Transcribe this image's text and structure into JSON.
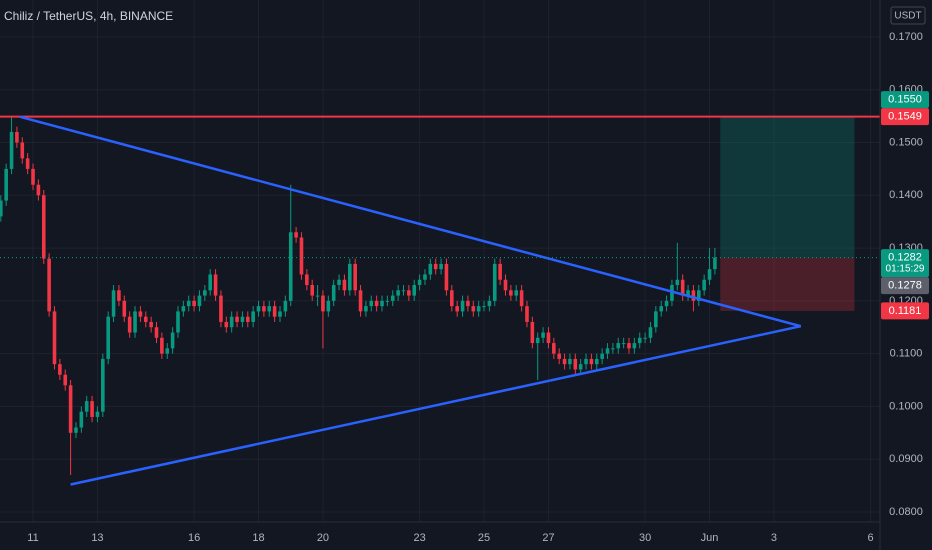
{
  "chart_data": {
    "type": "candlestick",
    "title": "Chiliz / TetherUS, 4h, BINANCE",
    "currency": "USDT",
    "up_color": "#089981",
    "down_color": "#f23645",
    "xlim": [
      -24.6,
      631
    ],
    "ylim": [
      0.0781,
      0.177
    ],
    "grid": true,
    "xticks": [
      {
        "value": 0,
        "label": "11"
      },
      {
        "value": 48,
        "label": "13"
      },
      {
        "value": 120,
        "label": "16"
      },
      {
        "value": 168,
        "label": "18"
      },
      {
        "value": 216,
        "label": "20"
      },
      {
        "value": 288,
        "label": "23"
      },
      {
        "value": 336,
        "label": "25"
      },
      {
        "value": 384,
        "label": "27"
      },
      {
        "value": 456,
        "label": "30"
      },
      {
        "value": 504,
        "label": "Jun"
      },
      {
        "value": 552,
        "label": "3"
      },
      {
        "value": 624,
        "label": "6"
      }
    ],
    "yticks": [
      {
        "value": 0.08,
        "label": "0.0800"
      },
      {
        "value": 0.09,
        "label": "0.0900"
      },
      {
        "value": 0.1,
        "label": "0.1000"
      },
      {
        "value": 0.11,
        "label": "0.1100"
      },
      {
        "value": 0.12,
        "label": "0.1200"
      },
      {
        "value": 0.13,
        "label": "0.1300"
      },
      {
        "value": 0.14,
        "label": "0.1400"
      },
      {
        "value": 0.15,
        "label": "0.1500"
      },
      {
        "value": 0.16,
        "label": "0.1600"
      },
      {
        "value": 0.17,
        "label": "0.1700"
      }
    ],
    "x": [
      -24,
      -20,
      -16,
      -12,
      -8,
      -4,
      0,
      4,
      8,
      12,
      16,
      20,
      24,
      28,
      32,
      36,
      40,
      44,
      48,
      52,
      56,
      60,
      64,
      68,
      72,
      76,
      80,
      84,
      88,
      92,
      96,
      100,
      104,
      108,
      112,
      116,
      120,
      124,
      128,
      132,
      136,
      140,
      144,
      148,
      152,
      156,
      160,
      164,
      168,
      172,
      176,
      180,
      184,
      188,
      192,
      196,
      200,
      204,
      208,
      212,
      216,
      220,
      224,
      228,
      232,
      236,
      240,
      244,
      248,
      252,
      256,
      260,
      264,
      268,
      272,
      276,
      280,
      284,
      288,
      292,
      296,
      300,
      304,
      308,
      312,
      316,
      320,
      324,
      328,
      332,
      336,
      340,
      344,
      348,
      352,
      356,
      360,
      364,
      368,
      372,
      376,
      380,
      384,
      388,
      392,
      396,
      400,
      404,
      408,
      412,
      416,
      420,
      424,
      428,
      432,
      436,
      440,
      444,
      448,
      452,
      456,
      460,
      464,
      468,
      472,
      476,
      480,
      484,
      488,
      492,
      496,
      500,
      504,
      508
    ],
    "ohlc": [
      [
        0.136,
        0.14,
        0.135,
        0.139
      ],
      [
        0.139,
        0.146,
        0.138,
        0.145
      ],
      [
        0.145,
        0.1549,
        0.144,
        0.152
      ],
      [
        0.152,
        0.153,
        0.149,
        0.15
      ],
      [
        0.15,
        0.151,
        0.146,
        0.147
      ],
      [
        0.147,
        0.148,
        0.144,
        0.145
      ],
      [
        0.145,
        0.146,
        0.141,
        0.142
      ],
      [
        0.142,
        0.143,
        0.139,
        0.14
      ],
      [
        0.14,
        0.141,
        0.127,
        0.128
      ],
      [
        0.128,
        0.129,
        0.117,
        0.118
      ],
      [
        0.118,
        0.119,
        0.107,
        0.108
      ],
      [
        0.108,
        0.109,
        0.105,
        0.106
      ],
      [
        0.106,
        0.107,
        0.103,
        0.104
      ],
      [
        0.104,
        0.105,
        0.087,
        0.095
      ],
      [
        0.095,
        0.097,
        0.094,
        0.096
      ],
      [
        0.096,
        0.1,
        0.095,
        0.099
      ],
      [
        0.099,
        0.102,
        0.098,
        0.101
      ],
      [
        0.101,
        0.102,
        0.097,
        0.098
      ],
      [
        0.098,
        0.1,
        0.097,
        0.099
      ],
      [
        0.099,
        0.11,
        0.098,
        0.109
      ],
      [
        0.109,
        0.118,
        0.108,
        0.117
      ],
      [
        0.117,
        0.123,
        0.116,
        0.122
      ],
      [
        0.122,
        0.123,
        0.119,
        0.12
      ],
      [
        0.12,
        0.121,
        0.116,
        0.117
      ],
      [
        0.117,
        0.118,
        0.113,
        0.114
      ],
      [
        0.114,
        0.119,
        0.113,
        0.118
      ],
      [
        0.118,
        0.119,
        0.116,
        0.117
      ],
      [
        0.117,
        0.118,
        0.115,
        0.116
      ],
      [
        0.116,
        0.117,
        0.114,
        0.115
      ],
      [
        0.115,
        0.116,
        0.112,
        0.113
      ],
      [
        0.113,
        0.114,
        0.109,
        0.11
      ],
      [
        0.11,
        0.112,
        0.109,
        0.111
      ],
      [
        0.111,
        0.115,
        0.11,
        0.114
      ],
      [
        0.114,
        0.119,
        0.113,
        0.118
      ],
      [
        0.118,
        0.12,
        0.117,
        0.119
      ],
      [
        0.119,
        0.121,
        0.118,
        0.12
      ],
      [
        0.12,
        0.121,
        0.118,
        0.119
      ],
      [
        0.119,
        0.122,
        0.118,
        0.121
      ],
      [
        0.121,
        0.123,
        0.12,
        0.122
      ],
      [
        0.122,
        0.126,
        0.121,
        0.125
      ],
      [
        0.125,
        0.126,
        0.12,
        0.121
      ],
      [
        0.121,
        0.122,
        0.115,
        0.116
      ],
      [
        0.116,
        0.117,
        0.114,
        0.115
      ],
      [
        0.115,
        0.118,
        0.114,
        0.117
      ],
      [
        0.117,
        0.118,
        0.115,
        0.116
      ],
      [
        0.116,
        0.118,
        0.115,
        0.117
      ],
      [
        0.117,
        0.118,
        0.115,
        0.116
      ],
      [
        0.116,
        0.119,
        0.115,
        0.118
      ],
      [
        0.118,
        0.12,
        0.117,
        0.119
      ],
      [
        0.119,
        0.12,
        0.117,
        0.118
      ],
      [
        0.118,
        0.12,
        0.117,
        0.119
      ],
      [
        0.119,
        0.12,
        0.116,
        0.117
      ],
      [
        0.117,
        0.119,
        0.116,
        0.118
      ],
      [
        0.118,
        0.121,
        0.117,
        0.12
      ],
      [
        0.12,
        0.142,
        0.119,
        0.133
      ],
      [
        0.133,
        0.134,
        0.131,
        0.132
      ],
      [
        0.132,
        0.133,
        0.124,
        0.125
      ],
      [
        0.125,
        0.126,
        0.122,
        0.123
      ],
      [
        0.123,
        0.124,
        0.12,
        0.121
      ],
      [
        0.121,
        0.123,
        0.119,
        0.121
      ],
      [
        0.121,
        0.122,
        0.111,
        0.118
      ],
      [
        0.118,
        0.121,
        0.117,
        0.12
      ],
      [
        0.12,
        0.124,
        0.119,
        0.123
      ],
      [
        0.123,
        0.125,
        0.122,
        0.124
      ],
      [
        0.124,
        0.125,
        0.121,
        0.122
      ],
      [
        0.122,
        0.128,
        0.121,
        0.127
      ],
      [
        0.127,
        0.128,
        0.121,
        0.122
      ],
      [
        0.122,
        0.123,
        0.117,
        0.118
      ],
      [
        0.118,
        0.12,
        0.117,
        0.119
      ],
      [
        0.119,
        0.121,
        0.118,
        0.12
      ],
      [
        0.12,
        0.121,
        0.118,
        0.119
      ],
      [
        0.119,
        0.121,
        0.118,
        0.12
      ],
      [
        0.12,
        0.121,
        0.119,
        0.12
      ],
      [
        0.12,
        0.122,
        0.119,
        0.121
      ],
      [
        0.121,
        0.123,
        0.12,
        0.122
      ],
      [
        0.122,
        0.123,
        0.121,
        0.122
      ],
      [
        0.122,
        0.123,
        0.12,
        0.121
      ],
      [
        0.121,
        0.124,
        0.12,
        0.123
      ],
      [
        0.123,
        0.125,
        0.122,
        0.124
      ],
      [
        0.124,
        0.126,
        0.123,
        0.125
      ],
      [
        0.125,
        0.128,
        0.124,
        0.127
      ],
      [
        0.127,
        0.128,
        0.125,
        0.126
      ],
      [
        0.126,
        0.128,
        0.125,
        0.127
      ],
      [
        0.127,
        0.128,
        0.121,
        0.122
      ],
      [
        0.122,
        0.123,
        0.118,
        0.119
      ],
      [
        0.119,
        0.12,
        0.117,
        0.118
      ],
      [
        0.118,
        0.121,
        0.117,
        0.12
      ],
      [
        0.12,
        0.121,
        0.118,
        0.119
      ],
      [
        0.119,
        0.12,
        0.117,
        0.118
      ],
      [
        0.118,
        0.12,
        0.117,
        0.119
      ],
      [
        0.119,
        0.12,
        0.118,
        0.119
      ],
      [
        0.119,
        0.121,
        0.118,
        0.12
      ],
      [
        0.12,
        0.128,
        0.119,
        0.127
      ],
      [
        0.127,
        0.128,
        0.123,
        0.124
      ],
      [
        0.124,
        0.125,
        0.121,
        0.122
      ],
      [
        0.122,
        0.123,
        0.12,
        0.121
      ],
      [
        0.121,
        0.123,
        0.12,
        0.122
      ],
      [
        0.122,
        0.123,
        0.118,
        0.119
      ],
      [
        0.119,
        0.12,
        0.115,
        0.116
      ],
      [
        0.116,
        0.117,
        0.111,
        0.112
      ],
      [
        0.112,
        0.114,
        0.105,
        0.113
      ],
      [
        0.113,
        0.115,
        0.112,
        0.114
      ],
      [
        0.114,
        0.115,
        0.111,
        0.112
      ],
      [
        0.112,
        0.113,
        0.109,
        0.11
      ],
      [
        0.11,
        0.111,
        0.108,
        0.109
      ],
      [
        0.109,
        0.11,
        0.107,
        0.108
      ],
      [
        0.108,
        0.11,
        0.107,
        0.109
      ],
      [
        0.109,
        0.11,
        0.106,
        0.107
      ],
      [
        0.107,
        0.109,
        0.106,
        0.108
      ],
      [
        0.108,
        0.11,
        0.107,
        0.109
      ],
      [
        0.109,
        0.11,
        0.107,
        0.108
      ],
      [
        0.108,
        0.11,
        0.107,
        0.109
      ],
      [
        0.109,
        0.111,
        0.108,
        0.11
      ],
      [
        0.11,
        0.112,
        0.109,
        0.111
      ],
      [
        0.111,
        0.112,
        0.11,
        0.111
      ],
      [
        0.111,
        0.113,
        0.11,
        0.112
      ],
      [
        0.112,
        0.113,
        0.111,
        0.112
      ],
      [
        0.112,
        0.113,
        0.11,
        0.111
      ],
      [
        0.111,
        0.113,
        0.11,
        0.112
      ],
      [
        0.112,
        0.114,
        0.111,
        0.113
      ],
      [
        0.113,
        0.114,
        0.112,
        0.113
      ],
      [
        0.113,
        0.116,
        0.112,
        0.115
      ],
      [
        0.115,
        0.119,
        0.114,
        0.118
      ],
      [
        0.118,
        0.12,
        0.117,
        0.119
      ],
      [
        0.119,
        0.121,
        0.118,
        0.12
      ],
      [
        0.12,
        0.124,
        0.119,
        0.123
      ],
      [
        0.123,
        0.131,
        0.122,
        0.124
      ],
      [
        0.124,
        0.125,
        0.12,
        0.121
      ],
      [
        0.121,
        0.123,
        0.12,
        0.122
      ],
      [
        0.122,
        0.123,
        0.118,
        0.12
      ],
      [
        0.12,
        0.123,
        0.119,
        0.122
      ],
      [
        0.122,
        0.125,
        0.121,
        0.124
      ],
      [
        0.124,
        0.13,
        0.123,
        0.126
      ],
      [
        0.126,
        0.13,
        0.125,
        0.1282
      ]
    ],
    "horizontal_lines": [
      {
        "value": 0.1549,
        "color": "#f23645"
      }
    ],
    "trend_lines": [
      {
        "x": [
          -10,
          572
        ],
        "y": [
          0.1549,
          0.1152
        ],
        "color": "#2962ff"
      },
      {
        "x": [
          28,
          572
        ],
        "y": [
          0.0852,
          0.1152
        ],
        "color": "#2962ff"
      }
    ],
    "position": {
      "x": [
        512,
        612
      ],
      "entry": 0.1282,
      "target": 0.1549,
      "stop": 0.1181
    },
    "price_labels": [
      {
        "value": 0.1549,
        "label": "0.1549",
        "color": "#f23645"
      },
      {
        "value": 0.155,
        "label": "0.1550",
        "color": "#089981"
      },
      {
        "value": 0.1282,
        "label": "0.1282",
        "color": "#089981",
        "countdown": "01:15:29"
      },
      {
        "value": 0.1278,
        "label": "0.1278",
        "color": "#5d606b"
      },
      {
        "value": 0.1181,
        "label": "0.1181",
        "color": "#f23645"
      }
    ]
  }
}
